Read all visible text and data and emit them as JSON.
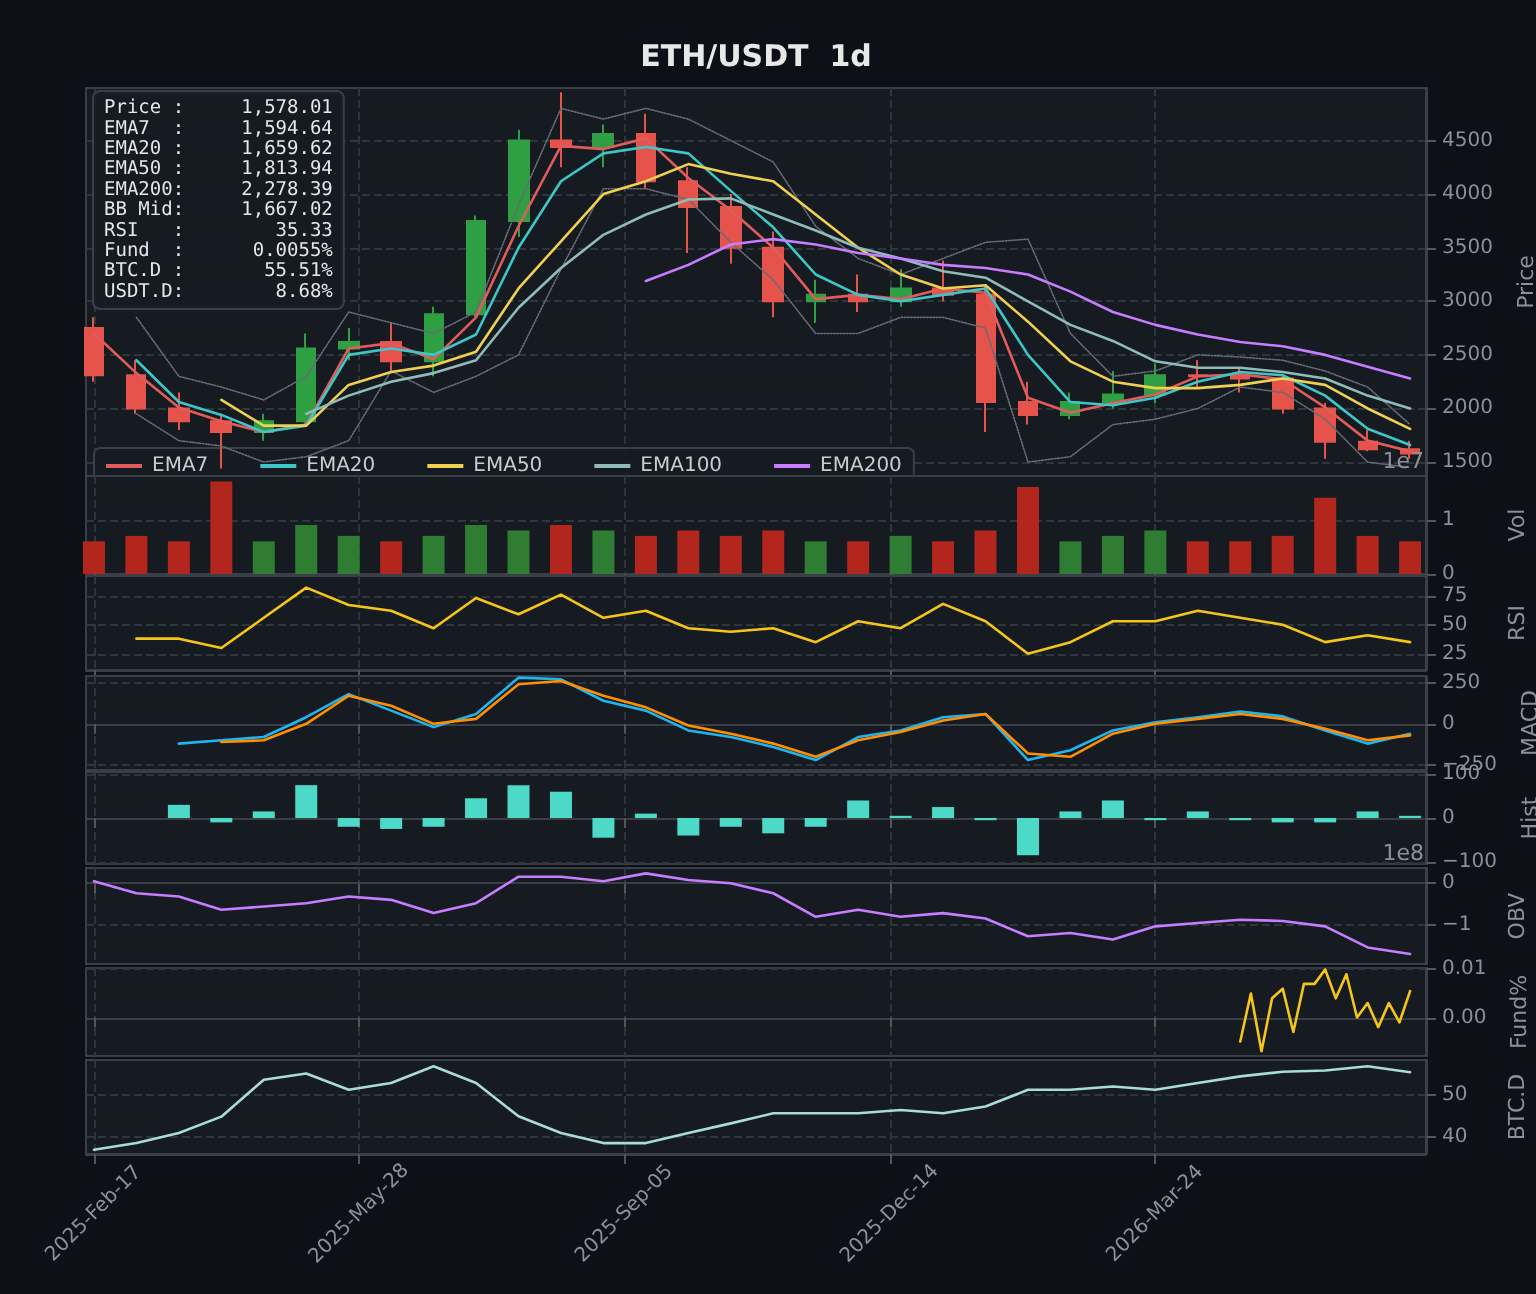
{
  "chart_data": [
    {
      "type": "candlestick",
      "title": "ETH/USDT  1d",
      "ylabel": "Price",
      "legend": "bottom left",
      "grid": true,
      "marker": "none",
      "tick_labels": "y",
      "annotations": [
        "Price :     1,578.01",
        "EMA7  :     1,594.64",
        "EMA20 :     1,659.62",
        "EMA50 :     1,813.94",
        "EMA200:     2,278.39",
        "BB Mid:     1,667.02",
        "RSI   :        35.33",
        "Fund  :      0.0055%",
        "BTC.D :       55.51%",
        "USDT.D:        8.68%"
      ],
      "x": [
        "2025-02-17",
        "2025-03-05",
        "2025-03-21",
        "2025-04-06",
        "2025-04-22",
        "2025-05-08",
        "2025-05-24",
        "2025-06-09",
        "2025-06-25",
        "2025-07-11",
        "2025-07-27",
        "2025-08-12",
        "2025-08-28",
        "2025-09-13",
        "2025-09-29",
        "2025-10-15",
        "2025-10-31",
        "2025-11-16",
        "2025-12-02",
        "2025-12-18",
        "2026-01-03",
        "2026-01-19",
        "2026-02-04",
        "2026-02-20",
        "2026-03-08",
        "2026-03-24",
        "2026-04-09",
        "2026-04-25",
        "2026-05-11",
        "2026-05-27",
        "2026-06-12",
        "2026-06-28"
      ],
      "xlim": [
        "2025-02-14",
        "2026-07-04"
      ],
      "xticks": [
        {
          "value": "2025-02-17",
          "label": null
        },
        {
          "value": "2025-05-28",
          "label": null
        },
        {
          "value": "2025-09-05",
          "label": null
        },
        {
          "value": "2025-12-14",
          "label": null
        },
        {
          "value": "2026-03-24",
          "label": null
        }
      ],
      "ylim": [
        1370,
        4990
      ],
      "yticks": [
        1500,
        2000,
        2500,
        3000,
        3500,
        4000,
        4500
      ],
      "ohlc": [
        [
          2750,
          2850,
          2250,
          2310
        ],
        [
          2310,
          2450,
          1950,
          2000
        ],
        [
          2000,
          2150,
          1800,
          1880
        ],
        [
          1880,
          1950,
          1440,
          1780
        ],
        [
          1780,
          1950,
          1700,
          1880
        ],
        [
          1880,
          2700,
          1850,
          2560
        ],
        [
          2560,
          2750,
          2450,
          2620
        ],
        [
          2620,
          2800,
          2350,
          2440
        ],
        [
          2440,
          2950,
          2300,
          2880
        ],
        [
          2880,
          3800,
          2850,
          3750
        ],
        [
          3750,
          4600,
          3600,
          4500
        ],
        [
          4500,
          4950,
          4250,
          4440
        ],
        [
          4440,
          4650,
          4250,
          4560
        ],
        [
          4560,
          4750,
          4050,
          4120
        ],
        [
          4120,
          4250,
          3450,
          3880
        ],
        [
          3880,
          4000,
          3350,
          3500
        ],
        [
          3500,
          3650,
          2850,
          3000
        ],
        [
          3000,
          3200,
          2800,
          3060
        ],
        [
          3060,
          3250,
          2900,
          3000
        ],
        [
          3000,
          3300,
          2950,
          3120
        ],
        [
          3120,
          3380,
          3000,
          3060
        ],
        [
          3060,
          3150,
          1780,
          2060
        ],
        [
          2060,
          2250,
          1850,
          1940
        ],
        [
          1940,
          2150,
          1900,
          2060
        ],
        [
          2060,
          2350,
          2000,
          2130
        ],
        [
          2130,
          2420,
          2050,
          2310
        ],
        [
          2310,
          2450,
          2200,
          2300
        ],
        [
          2300,
          2380,
          2150,
          2280
        ],
        [
          2280,
          2300,
          1950,
          2000
        ],
        [
          2000,
          2050,
          1530,
          1690
        ],
        [
          1690,
          1800,
          1600,
          1620
        ],
        [
          1620,
          1700,
          1530,
          1580
        ]
      ],
      "series": [
        {
          "type": "line",
          "line_style": "dotted",
          "color": "#666c75",
          "values": [
            null,
            2850,
            2300,
            2200,
            2080,
            2300,
            2900,
            2800,
            2700,
            2900,
            3900,
            4800,
            4700,
            4800,
            4700,
            4500,
            4300,
            3700,
            3400,
            3250,
            3400,
            3550,
            3580,
            2700,
            2300,
            2350,
            2500,
            2480,
            2450,
            2350,
            2200,
            1850
          ]
        },
        {
          "type": "line",
          "line_style": "dotted",
          "color": "#666c75",
          "values": [
            null,
            1950,
            1700,
            1650,
            1500,
            1550,
            1700,
            2350,
            2150,
            2300,
            2500,
            3300,
            4050,
            4050,
            3950,
            3550,
            3200,
            2700,
            2700,
            2850,
            2850,
            2750,
            1500,
            1550,
            1850,
            1900,
            2000,
            2200,
            2150,
            1900,
            1500,
            1450
          ]
        },
        {
          "type": "line",
          "name": "EMA7",
          "color": "#e05c5c",
          "values": [
            2700,
            2330,
            2010,
            1880,
            1780,
            1850,
            2560,
            2610,
            2460,
            2850,
            3700,
            4450,
            4420,
            4520,
            4150,
            3850,
            3500,
            3020,
            3060,
            3020,
            3120,
            3080,
            2100,
            1960,
            2050,
            2130,
            2300,
            2320,
            2270,
            2010,
            1700,
            1600
          ]
        },
        {
          "type": "line",
          "name": "EMA20",
          "color": "#3ec6c6",
          "values": [
            null,
            2450,
            2060,
            1940,
            1780,
            1840,
            2500,
            2560,
            2500,
            2690,
            3500,
            4120,
            4380,
            4440,
            4380,
            4030,
            3690,
            3250,
            3060,
            3000,
            3060,
            3120,
            2500,
            2060,
            2030,
            2100,
            2250,
            2340,
            2310,
            2120,
            1810,
            1660
          ]
        },
        {
          "type": "line",
          "name": "EMA50",
          "color": "#f0d050",
          "values": [
            null,
            null,
            null,
            2080,
            1840,
            1840,
            2220,
            2340,
            2400,
            2530,
            3120,
            3560,
            4000,
            4120,
            4280,
            4190,
            4120,
            3810,
            3500,
            3250,
            3120,
            3150,
            2810,
            2440,
            2250,
            2190,
            2190,
            2220,
            2280,
            2220,
            2000,
            1810
          ]
        },
        {
          "type": "line",
          "name": "EMA100",
          "color": "#8fbcbb",
          "values": [
            null,
            null,
            null,
            null,
            null,
            1950,
            2120,
            2250,
            2330,
            2450,
            2940,
            3310,
            3620,
            3810,
            3950,
            3960,
            3810,
            3660,
            3500,
            3400,
            3280,
            3220,
            3000,
            2780,
            2630,
            2440,
            2380,
            2380,
            2340,
            2280,
            2120,
            2000
          ]
        },
        {
          "type": "line",
          "name": "EMA200",
          "color": "#c77dff",
          "values": [
            null,
            null,
            null,
            null,
            null,
            null,
            null,
            null,
            null,
            null,
            null,
            null,
            null,
            3190,
            3340,
            3530,
            3580,
            3530,
            3450,
            3400,
            3340,
            3310,
            3250,
            3090,
            2900,
            2780,
            2690,
            2620,
            2580,
            2500,
            2390,
            2280
          ]
        }
      ]
    },
    {
      "type": "bar",
      "ylabel": "Vol",
      "grid": true,
      "tick_labels": "y",
      "annotations": [
        "1e7"
      ],
      "x": [
        "2025-02-17",
        "2025-03-05",
        "2025-03-21",
        "2025-04-06",
        "2025-04-22",
        "2025-05-08",
        "2025-05-24",
        "2025-06-09",
        "2025-06-25",
        "2025-07-11",
        "2025-07-27",
        "2025-08-12",
        "2025-08-28",
        "2025-09-13",
        "2025-09-29",
        "2025-10-15",
        "2025-10-31",
        "2025-11-16",
        "2025-12-02",
        "2025-12-18",
        "2026-01-03",
        "2026-01-19",
        "2026-02-04",
        "2026-02-20",
        "2026-03-08",
        "2026-03-24",
        "2026-04-09",
        "2026-04-25",
        "2026-05-11",
        "2026-05-27",
        "2026-06-12",
        "2026-06-28"
      ],
      "xlim": [
        "2025-02-14",
        "2026-07-04"
      ],
      "xticks": [
        {
          "value": "2025-02-17",
          "label": null
        },
        {
          "value": "2025-05-28",
          "label": null
        },
        {
          "value": "2025-09-05",
          "label": null
        },
        {
          "value": "2025-12-14",
          "label": null
        },
        {
          "value": "2026-03-24",
          "label": null
        }
      ],
      "ylim": [
        0,
        1.8
      ],
      "yticks": [
        0,
        1
      ],
      "values": [
        0.6,
        0.7,
        0.6,
        1.7,
        0.6,
        0.9,
        0.7,
        0.6,
        0.7,
        0.9,
        0.8,
        0.9,
        0.8,
        0.7,
        0.8,
        0.7,
        0.8,
        0.6,
        0.6,
        0.7,
        0.6,
        0.8,
        1.6,
        0.6,
        0.7,
        0.8,
        0.6,
        0.6,
        0.7,
        1.4,
        0.7,
        0.6
      ],
      "colors": [
        "#b3261e",
        "#b3261e",
        "#b3261e",
        "#b3261e",
        "#2e7d32",
        "#2e7d32",
        "#2e7d32",
        "#b3261e",
        "#2e7d32",
        "#2e7d32",
        "#2e7d32",
        "#b3261e",
        "#2e7d32",
        "#b3261e",
        "#b3261e",
        "#b3261e",
        "#b3261e",
        "#2e7d32",
        "#b3261e",
        "#2e7d32",
        "#b3261e",
        "#b3261e",
        "#b3261e",
        "#2e7d32",
        "#2e7d32",
        "#2e7d32",
        "#b3261e",
        "#b3261e",
        "#b3261e",
        "#b3261e",
        "#b3261e",
        "#b3261e"
      ]
    },
    {
      "type": "line",
      "ylabel": "RSI",
      "grid": true,
      "marker": "none",
      "tick_labels": "y",
      "x": [
        "2025-03-05",
        "2025-03-21",
        "2025-04-06",
        "2025-04-22",
        "2025-05-08",
        "2025-05-24",
        "2025-06-09",
        "2025-06-25",
        "2025-07-11",
        "2025-07-27",
        "2025-08-12",
        "2025-08-28",
        "2025-09-13",
        "2025-09-29",
        "2025-10-15",
        "2025-10-31",
        "2025-11-16",
        "2025-12-02",
        "2025-12-18",
        "2026-01-03",
        "2026-01-19",
        "2026-02-04",
        "2026-02-20",
        "2026-03-08",
        "2026-03-24",
        "2026-04-09",
        "2026-04-25",
        "2026-05-11",
        "2026-05-27",
        "2026-06-12",
        "2026-06-28"
      ],
      "xlim": [
        "2025-02-14",
        "2026-07-04"
      ],
      "xticks": [
        {
          "value": "2025-02-17",
          "label": null
        },
        {
          "value": "2025-05-28",
          "label": null
        },
        {
          "value": "2025-09-05",
          "label": null
        },
        {
          "value": "2025-12-14",
          "label": null
        },
        {
          "value": "2026-03-24",
          "label": null
        }
      ],
      "ylim": [
        11,
        92
      ],
      "yticks": [
        25,
        50,
        75
      ],
      "series": [
        {
          "color": "#f5c518",
          "values": [
            38,
            38,
            30,
            56,
            82,
            67,
            62,
            47,
            73,
            59,
            76,
            56,
            62,
            47,
            44,
            47,
            35,
            53,
            47,
            68,
            53,
            25,
            35,
            53,
            53,
            62,
            56,
            50,
            35,
            41,
            35
          ]
        }
      ]
    },
    {
      "type": "line",
      "ylabel": "MACD",
      "grid": true,
      "marker": "none",
      "tick_labels": "y",
      "x": [
        "2025-03-21",
        "2025-04-06",
        "2025-04-22",
        "2025-05-08",
        "2025-05-24",
        "2025-06-09",
        "2025-06-25",
        "2025-07-11",
        "2025-07-27",
        "2025-08-12",
        "2025-08-28",
        "2025-09-13",
        "2025-09-29",
        "2025-10-15",
        "2025-10-31",
        "2025-11-16",
        "2025-12-02",
        "2025-12-18",
        "2026-01-03",
        "2026-01-19",
        "2026-02-04",
        "2026-02-20",
        "2026-03-08",
        "2026-03-24",
        "2026-04-09",
        "2026-04-25",
        "2026-05-11",
        "2026-05-27",
        "2026-06-12",
        "2026-06-28"
      ],
      "xlim": [
        "2025-02-14",
        "2026-07-04"
      ],
      "xticks": [
        {
          "value": "2025-02-17",
          "label": null
        },
        {
          "value": "2025-05-28",
          "label": null
        },
        {
          "value": "2025-09-05",
          "label": null
        },
        {
          "value": "2025-12-14",
          "label": null
        },
        {
          "value": "2026-03-24",
          "label": null
        }
      ],
      "ylim": [
        -280,
        290
      ],
      "yticks": [
        {
          "value": -250,
          "label": "−250"
        },
        0,
        250
      ],
      "series": [
        {
          "color": "#1fb5f0",
          "values": [
            -120,
            -100,
            -80,
            40,
            180,
            80,
            -20,
            60,
            280,
            270,
            140,
            80,
            -40,
            -80,
            -140,
            -220,
            -80,
            -40,
            40,
            60,
            -220,
            -160,
            -40,
            10,
            40,
            75,
            45,
            -40,
            -120,
            -60
          ]
        },
        {
          "color": "#ff8f00",
          "values": [
            null,
            -110,
            -100,
            0,
            170,
            110,
            0,
            30,
            240,
            260,
            170,
            100,
            -10,
            -60,
            -120,
            -200,
            -100,
            -50,
            20,
            60,
            -180,
            -200,
            -60,
            0,
            30,
            60,
            30,
            -30,
            -100,
            -70
          ]
        }
      ]
    },
    {
      "type": "bar",
      "ylabel": "Hist",
      "grid": true,
      "tick_labels": "y",
      "color": "#4dd9c8",
      "x": [
        "2025-03-21",
        "2025-04-06",
        "2025-04-22",
        "2025-05-08",
        "2025-05-24",
        "2025-06-09",
        "2025-06-25",
        "2025-07-11",
        "2025-07-27",
        "2025-08-12",
        "2025-08-28",
        "2025-09-13",
        "2025-09-29",
        "2025-10-15",
        "2025-10-31",
        "2025-11-16",
        "2025-12-02",
        "2025-12-18",
        "2026-01-03",
        "2026-01-19",
        "2026-02-04",
        "2026-02-20",
        "2026-03-08",
        "2026-03-24",
        "2026-04-09",
        "2026-04-25",
        "2026-05-11",
        "2026-05-27",
        "2026-06-12",
        "2026-06-28"
      ],
      "xlim": [
        "2025-02-14",
        "2026-07-04"
      ],
      "xticks": [
        {
          "value": "2025-02-17",
          "label": null
        },
        {
          "value": "2025-05-28",
          "label": null
        },
        {
          "value": "2025-09-05",
          "label": null
        },
        {
          "value": "2025-12-14",
          "label": null
        },
        {
          "value": "2026-03-24",
          "label": null
        }
      ],
      "ylim": [
        -105,
        105
      ],
      "yticks": [
        {
          "value": -100,
          "label": "−100"
        },
        0,
        100
      ],
      "values": [
        30,
        -10,
        15,
        75,
        -20,
        -25,
        -20,
        45,
        75,
        60,
        -45,
        10,
        -40,
        -20,
        -35,
        -20,
        40,
        5,
        25,
        -5,
        -85,
        15,
        40,
        -5,
        15,
        -5,
        -10,
        -10,
        15,
        5
      ]
    },
    {
      "type": "line",
      "ylabel": "OBV",
      "grid": true,
      "marker": "none",
      "tick_labels": "y",
      "annotations": [
        "1e8"
      ],
      "x": [
        "2025-02-17",
        "2025-03-05",
        "2025-03-21",
        "2025-04-06",
        "2025-04-22",
        "2025-05-08",
        "2025-05-24",
        "2025-06-09",
        "2025-06-25",
        "2025-07-11",
        "2025-07-27",
        "2025-08-12",
        "2025-08-28",
        "2025-09-13",
        "2025-09-29",
        "2025-10-15",
        "2025-10-31",
        "2025-11-16",
        "2025-12-02",
        "2025-12-18",
        "2026-01-03",
        "2026-01-19",
        "2026-02-04",
        "2026-02-20",
        "2026-03-08",
        "2026-03-24",
        "2026-04-09",
        "2026-04-25",
        "2026-05-11",
        "2026-05-27",
        "2026-06-12",
        "2026-06-28"
      ],
      "xlim": [
        "2025-02-14",
        "2026-07-04"
      ],
      "xticks": [
        {
          "value": "2025-02-17",
          "label": null
        },
        {
          "value": "2025-05-28",
          "label": null
        },
        {
          "value": "2025-09-05",
          "label": null
        },
        {
          "value": "2025-12-14",
          "label": null
        },
        {
          "value": "2026-03-24",
          "label": null
        }
      ],
      "ylim": [
        -1.95,
        0.37
      ],
      "yticks": [
        {
          "value": -1,
          "label": "−1"
        },
        0
      ],
      "series": [
        {
          "color": "#c77dff",
          "values": [
            0.05,
            -0.24,
            -0.32,
            -0.64,
            -0.56,
            -0.48,
            -0.32,
            -0.4,
            -0.72,
            -0.48,
            0.16,
            0.16,
            0.05,
            0.24,
            0.08,
            0,
            -0.24,
            -0.81,
            -0.64,
            -0.81,
            -0.72,
            -0.85,
            -1.28,
            -1.2,
            -1.36,
            -1.04,
            -0.96,
            -0.88,
            -0.91,
            -1.04,
            -1.55,
            -1.71
          ]
        }
      ]
    },
    {
      "type": "line",
      "ylabel": "Fund%",
      "grid": true,
      "marker": "none",
      "tick_labels": "y",
      "xlim": [
        "2025-02-14",
        "2026-07-04"
      ],
      "xticks": [
        {
          "value": "2025-02-17",
          "label": null
        },
        {
          "value": "2025-05-28",
          "label": null
        },
        {
          "value": "2025-09-05",
          "label": null
        },
        {
          "value": "2025-12-14",
          "label": null
        },
        {
          "value": "2026-03-24",
          "label": null
        }
      ],
      "ylim": [
        -0.008,
        0.0103
      ],
      "yticks": [
        {
          "value": 0,
          "label": "0.00"
        },
        0.01
      ],
      "series": [
        {
          "color": "#f5c518",
          "x": [
            "2026-04-25",
            "2026-04-29",
            "2026-05-03",
            "2026-05-07",
            "2026-05-11",
            "2026-05-15",
            "2026-05-19",
            "2026-05-23",
            "2026-05-27",
            "2026-05-31",
            "2026-06-04",
            "2026-06-08",
            "2026-06-12",
            "2026-06-16",
            "2026-06-20",
            "2026-06-24",
            "2026-06-28"
          ],
          "values": [
            -0.005,
            0.005,
            -0.007,
            0.004,
            0.006,
            -0.003,
            0.007,
            0.007,
            0.01,
            0.004,
            0.009,
            0,
            0.003,
            -0.002,
            0.003,
            -0.001,
            0.0055
          ]
        }
      ]
    },
    {
      "type": "line",
      "ylabel": "BTC.D",
      "grid": true,
      "marker": "none",
      "x": [
        "2025-02-17",
        "2025-03-05",
        "2025-03-21",
        "2025-04-06",
        "2025-04-22",
        "2025-05-08",
        "2025-05-24",
        "2025-06-09",
        "2025-06-25",
        "2025-07-11",
        "2025-07-27",
        "2025-08-12",
        "2025-08-28",
        "2025-09-13",
        "2025-09-29",
        "2025-10-15",
        "2025-10-31",
        "2025-11-16",
        "2025-12-02",
        "2025-12-18",
        "2026-01-03",
        "2026-01-19",
        "2026-02-04",
        "2026-02-20",
        "2026-03-08",
        "2026-03-24",
        "2026-04-09",
        "2026-04-25",
        "2026-05-11",
        "2026-05-27",
        "2026-06-12",
        "2026-06-28"
      ],
      "xlim": [
        "2025-02-14",
        "2026-07-04"
      ],
      "xticks": [
        {
          "value": "2025-02-17",
          "label": "2025-Feb-17"
        },
        {
          "value": "2025-05-28",
          "label": "2025-May-28"
        },
        {
          "value": "2025-09-05",
          "label": "2025-Sep-05"
        },
        {
          "value": "2025-12-14",
          "label": "2025-Dec-14"
        },
        {
          "value": "2026-03-24",
          "label": "2026-Mar-24"
        }
      ],
      "ylim": [
        36,
        58.4
      ],
      "yticks": [
        40,
        50
      ],
      "series": [
        {
          "color": "#a8dcd5",
          "values": [
            37,
            38.6,
            41,
            44.9,
            53.7,
            55.2,
            51.3,
            52.9,
            56.9,
            52.9,
            45,
            41,
            38.6,
            38.6,
            41,
            43.3,
            45.7,
            45.7,
            45.7,
            46.5,
            45.7,
            47.3,
            51.3,
            51.3,
            52.1,
            51.3,
            52.9,
            54.5,
            55.6,
            55.9,
            56.9,
            55.5
          ]
        }
      ]
    }
  ]
}
